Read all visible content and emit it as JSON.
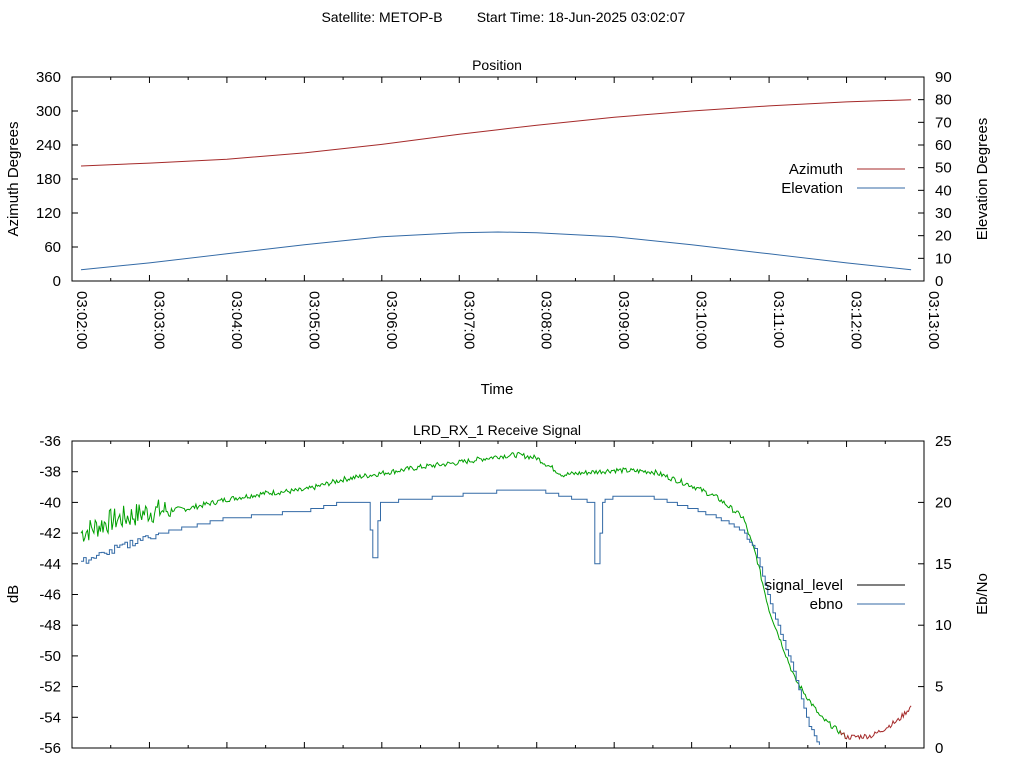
{
  "header": {
    "satellite": "Satellite: METOP-B",
    "start_time": "Start Time: 18-Jun-2025 03:02:07"
  },
  "chart_data": [
    {
      "type": "line",
      "title": "Position",
      "xlabel": "Time",
      "ylabel": "Azimuth Degrees",
      "y2label": "Elevation Degrees",
      "x_tick_labels": [
        "03:02:00",
        "03:03:00",
        "03:04:00",
        "03:05:00",
        "03:06:00",
        "03:07:00",
        "03:08:00",
        "03:09:00",
        "03:10:00",
        "03:11:00",
        "03:12:00",
        "03:13:00"
      ],
      "y_ticks": [
        "0",
        "60",
        "120",
        "180",
        "240",
        "300",
        "360"
      ],
      "y2_ticks": [
        "0",
        "10",
        "20",
        "30",
        "40",
        "50",
        "60",
        "70",
        "80",
        "90"
      ],
      "xlim": [
        "03:02:00",
        "03:13:00"
      ],
      "ylim": [
        0,
        360
      ],
      "y2lim": [
        0,
        90
      ],
      "legend_position": "right",
      "series": [
        {
          "name": "Azimuth",
          "axis": "left",
          "color": "#a52a2a",
          "x": [
            "03:02:07",
            "03:03:00",
            "03:04:00",
            "03:05:00",
            "03:06:00",
            "03:07:00",
            "03:07:30",
            "03:08:00",
            "03:09:00",
            "03:10:00",
            "03:11:00",
            "03:12:00",
            "03:12:50"
          ],
          "y": [
            203,
            208,
            215,
            226,
            241,
            259,
            267,
            275,
            289,
            300,
            309,
            316,
            320
          ]
        },
        {
          "name": "Elevation",
          "axis": "right",
          "color": "#336aa6",
          "x": [
            "03:02:07",
            "03:03:00",
            "03:04:00",
            "03:05:00",
            "03:06:00",
            "03:07:00",
            "03:07:30",
            "03:08:00",
            "03:09:00",
            "03:10:00",
            "03:11:00",
            "03:12:00",
            "03:12:50"
          ],
          "y": [
            5,
            8,
            12,
            16,
            19.5,
            21.3,
            21.6,
            21.3,
            19.5,
            16,
            12,
            8,
            5
          ]
        }
      ]
    },
    {
      "type": "line",
      "title": "LRD_RX_1 Receive Signal",
      "ylabel": "dB",
      "y2label": "Eb/No",
      "y_ticks": [
        "-36",
        "-38",
        "-40",
        "-42",
        "-44",
        "-46",
        "-48",
        "-50",
        "-52",
        "-54",
        "-56"
      ],
      "y2_ticks": [
        "0",
        "5",
        "10",
        "15",
        "20",
        "25"
      ],
      "xlim": [
        "03:02:00",
        "03:13:00"
      ],
      "ylim": [
        -56,
        -36
      ],
      "y2lim": [
        0,
        25
      ],
      "legend_position": "right",
      "series": [
        {
          "name": "signal_level",
          "axis": "left",
          "color": "#00a000",
          "low_color": "#a52a2a",
          "x": [
            "03:02:07",
            "03:02:30",
            "03:03:00",
            "03:03:30",
            "03:04:00",
            "03:04:30",
            "03:05:00",
            "03:05:30",
            "03:06:00",
            "03:06:30",
            "03:07:00",
            "03:07:30",
            "03:07:45",
            "03:08:00",
            "03:08:20",
            "03:09:00",
            "03:09:30",
            "03:10:00",
            "03:10:20",
            "03:10:40",
            "03:10:50",
            "03:11:00",
            "03:11:20",
            "03:11:40",
            "03:12:00",
            "03:12:20",
            "03:12:40",
            "03:12:50"
          ],
          "y": [
            -42.0,
            -41.2,
            -40.6,
            -40.4,
            -39.8,
            -39.4,
            -39.2,
            -38.5,
            -38.1,
            -37.7,
            -37.4,
            -37.0,
            -36.9,
            -37.1,
            -38.2,
            -37.9,
            -38.0,
            -38.9,
            -39.7,
            -41.0,
            -43.5,
            -47.0,
            -51.5,
            -54.0,
            -55.3,
            -55.2,
            -54.2,
            -53.3
          ]
        },
        {
          "name": "ebno",
          "axis": "right",
          "color": "#336aa6",
          "x": [
            "03:02:07",
            "03:02:30",
            "03:03:00",
            "03:03:30",
            "03:04:00",
            "03:04:30",
            "03:05:00",
            "03:05:30",
            "03:05:50",
            "03:05:52",
            "03:05:55",
            "03:05:58",
            "03:06:00",
            "03:06:30",
            "03:07:00",
            "03:07:30",
            "03:08:00",
            "03:08:30",
            "03:08:43",
            "03:08:45",
            "03:08:48",
            "03:08:50",
            "03:09:00",
            "03:09:30",
            "03:10:00",
            "03:10:20",
            "03:10:40",
            "03:10:50",
            "03:11:00",
            "03:11:20",
            "03:11:30",
            "03:11:40"
          ],
          "y": [
            15.2,
            16.0,
            17.3,
            18.0,
            18.7,
            19.0,
            19.3,
            20.0,
            20.0,
            15.5,
            15.5,
            20.0,
            20.0,
            20.3,
            20.6,
            20.9,
            21.0,
            20.3,
            20.0,
            15.0,
            15.0,
            20.0,
            20.5,
            20.4,
            19.5,
            18.8,
            17.6,
            16.0,
            12.0,
            6.0,
            2.0,
            0.0
          ]
        }
      ]
    }
  ]
}
